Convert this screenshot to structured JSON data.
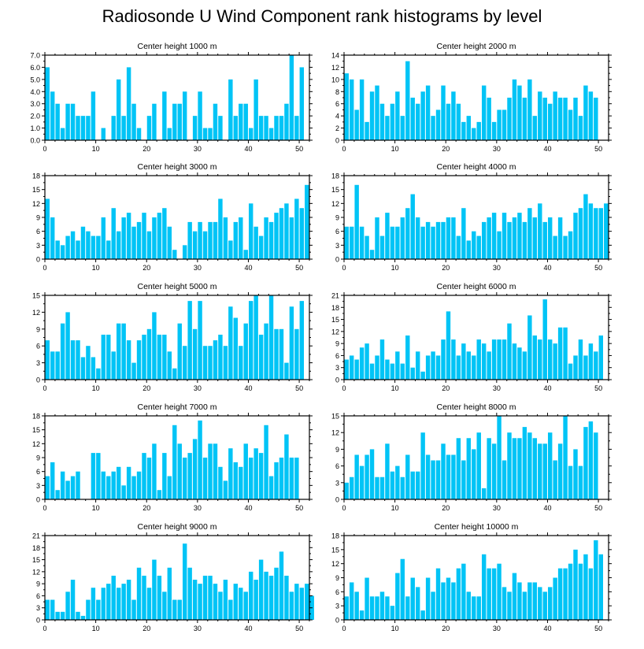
{
  "title": "Radiosonde U Wind Component rank histograms by level",
  "colors": {
    "bar": "#00c4f6",
    "axis": "#000000",
    "background": "#ffffff"
  },
  "chart_data": [
    {
      "type": "bar",
      "title": "Center height 1000 m",
      "ylim": [
        0,
        7
      ],
      "yticks": [
        0,
        1,
        2,
        3,
        4,
        5,
        6,
        7
      ],
      "ytick_labels": [
        "0.0",
        "1.0",
        "2.0",
        "3.0",
        "4.0",
        "5.0",
        "6.0",
        "7.0"
      ],
      "xlim": [
        0,
        52
      ],
      "xticks": [
        0,
        10,
        20,
        30,
        40,
        50
      ],
      "values": [
        6,
        4,
        3,
        1,
        3,
        3,
        2,
        2,
        2,
        4,
        0,
        1,
        0,
        2,
        5,
        2,
        6,
        3,
        1,
        0,
        2,
        3,
        0,
        4,
        1,
        3,
        3,
        4,
        0,
        2,
        4,
        1,
        1,
        3,
        2,
        0,
        5,
        2,
        3,
        3,
        1,
        5,
        2,
        2,
        1,
        2,
        2,
        3,
        7,
        2,
        6
      ]
    },
    {
      "type": "bar",
      "title": "Center height 2000 m",
      "ylim": [
        0,
        14
      ],
      "yticks": [
        0,
        2,
        4,
        6,
        8,
        10,
        12,
        14
      ],
      "ytick_labels": [
        "0",
        "2",
        "4",
        "6",
        "8",
        "10",
        "12",
        "14"
      ],
      "xlim": [
        0,
        52
      ],
      "xticks": [
        0,
        10,
        20,
        30,
        40,
        50
      ],
      "values": [
        11,
        10,
        5,
        10,
        3,
        8,
        9,
        6,
        4,
        6,
        8,
        4,
        13,
        7,
        6,
        8,
        9,
        4,
        5,
        9,
        6,
        8,
        6,
        3,
        4,
        2,
        3,
        9,
        7,
        3,
        5,
        5,
        7,
        10,
        9,
        7,
        10,
        4,
        8,
        7,
        6,
        8,
        7,
        7,
        5,
        7,
        4,
        9,
        8,
        7
      ]
    },
    {
      "type": "bar",
      "title": "Center height 3000 m",
      "ylim": [
        0,
        18
      ],
      "yticks": [
        0,
        3,
        6,
        9,
        12,
        15,
        18
      ],
      "ytick_labels": [
        "0",
        "3",
        "6",
        "9",
        "12",
        "15",
        "18"
      ],
      "xlim": [
        0,
        52
      ],
      "xticks": [
        0,
        10,
        20,
        30,
        40,
        50
      ],
      "values": [
        13,
        9,
        4,
        3,
        5,
        6,
        4,
        7,
        6,
        5,
        5,
        9,
        4,
        11,
        6,
        9,
        10,
        7,
        8,
        10,
        6,
        9,
        10,
        11,
        7,
        2,
        0,
        3,
        8,
        6,
        8,
        6,
        8,
        8,
        13,
        9,
        4,
        8,
        9,
        2,
        12,
        7,
        5,
        9,
        8,
        10,
        11,
        12,
        9,
        13,
        11,
        16
      ]
    },
    {
      "type": "bar",
      "title": "Center height 4000 m",
      "ylim": [
        0,
        18
      ],
      "yticks": [
        0,
        3,
        6,
        9,
        12,
        15,
        18
      ],
      "ytick_labels": [
        "0",
        "3",
        "6",
        "9",
        "12",
        "15",
        "18"
      ],
      "xlim": [
        0,
        52
      ],
      "xticks": [
        0,
        10,
        20,
        30,
        40,
        50
      ],
      "values": [
        7,
        7,
        16,
        7,
        5,
        2,
        9,
        5,
        10,
        7,
        7,
        9,
        11,
        14,
        9,
        7,
        8,
        7,
        8,
        8,
        9,
        9,
        5,
        11,
        4,
        6,
        5,
        8,
        9,
        10,
        6,
        10,
        8,
        9,
        10,
        8,
        11,
        9,
        12,
        8,
        9,
        5,
        9,
        5,
        6,
        10,
        11,
        14,
        12,
        11,
        11,
        12
      ]
    },
    {
      "type": "bar",
      "title": "Center height 5000 m",
      "ylim": [
        0,
        15
      ],
      "yticks": [
        0,
        3,
        6,
        9,
        12,
        15
      ],
      "ytick_labels": [
        "0",
        "3",
        "6",
        "9",
        "12",
        "15"
      ],
      "xlim": [
        0,
        52
      ],
      "xticks": [
        0,
        10,
        20,
        30,
        40,
        50
      ],
      "values": [
        7,
        5,
        5,
        10,
        12,
        7,
        7,
        4,
        6,
        4,
        2,
        8,
        8,
        5,
        10,
        10,
        7,
        3,
        7,
        8,
        9,
        12,
        8,
        8,
        5,
        2,
        10,
        6,
        14,
        9,
        14,
        6,
        6,
        7,
        8,
        6,
        13,
        11,
        6,
        10,
        14,
        15,
        8,
        10,
        15,
        9,
        9,
        3,
        13,
        9,
        14
      ]
    },
    {
      "type": "bar",
      "title": "Center height 6000 m",
      "ylim": [
        0,
        21
      ],
      "yticks": [
        0,
        3,
        6,
        9,
        12,
        15,
        18,
        21
      ],
      "ytick_labels": [
        "0",
        "3",
        "6",
        "9",
        "12",
        "15",
        "18",
        "21"
      ],
      "xlim": [
        0,
        52
      ],
      "xticks": [
        0,
        10,
        20,
        30,
        40,
        50
      ],
      "values": [
        5,
        6,
        5,
        8,
        9,
        4,
        6,
        10,
        5,
        4,
        7,
        4,
        11,
        3,
        7,
        2,
        6,
        7,
        6,
        10,
        17,
        10,
        6,
        9,
        7,
        6,
        10,
        9,
        7,
        10,
        10,
        10,
        14,
        9,
        8,
        7,
        16,
        11,
        10,
        20,
        10,
        9,
        13,
        13,
        4,
        6,
        10,
        6,
        9,
        7,
        11
      ]
    },
    {
      "type": "bar",
      "title": "Center height 7000 m",
      "ylim": [
        0,
        18
      ],
      "yticks": [
        0,
        3,
        6,
        9,
        12,
        15,
        18
      ],
      "ytick_labels": [
        "0",
        "3",
        "6",
        "9",
        "12",
        "15",
        "18"
      ],
      "xlim": [
        0,
        52
      ],
      "xticks": [
        0,
        10,
        20,
        30,
        40,
        50
      ],
      "values": [
        5,
        8,
        2,
        6,
        4,
        5,
        6,
        0,
        0,
        10,
        10,
        6,
        5,
        6,
        7,
        3,
        7,
        5,
        6,
        10,
        9,
        12,
        2,
        10,
        5,
        16,
        12,
        9,
        10,
        13,
        17,
        9,
        12,
        12,
        7,
        4,
        11,
        8,
        7,
        12,
        9,
        11,
        10,
        16,
        5,
        8,
        9,
        14,
        9,
        9
      ]
    },
    {
      "type": "bar",
      "title": "Center height 8000 m",
      "ylim": [
        0,
        15
      ],
      "yticks": [
        0,
        3,
        6,
        9,
        12,
        15
      ],
      "ytick_labels": [
        "0",
        "3",
        "6",
        "9",
        "12",
        "15"
      ],
      "xlim": [
        0,
        52
      ],
      "xticks": [
        0,
        10,
        20,
        30,
        40,
        50
      ],
      "values": [
        3,
        4,
        8,
        6,
        8,
        9,
        4,
        4,
        10,
        5,
        6,
        4,
        8,
        5,
        5,
        12,
        8,
        7,
        7,
        10,
        8,
        8,
        11,
        7,
        11,
        9,
        12,
        2,
        11,
        10,
        15,
        7,
        12,
        11,
        11,
        13,
        12,
        11,
        10,
        10,
        12,
        7,
        10,
        15,
        6,
        9,
        6,
        13,
        14,
        12
      ]
    },
    {
      "type": "bar",
      "title": "Center height 9000 m",
      "ylim": [
        0,
        21
      ],
      "yticks": [
        0,
        3,
        6,
        9,
        12,
        15,
        18,
        21
      ],
      "ytick_labels": [
        "0",
        "3",
        "6",
        "9",
        "12",
        "15",
        "18",
        "21"
      ],
      "xlim": [
        0,
        52
      ],
      "xticks": [
        0,
        10,
        20,
        30,
        40,
        50
      ],
      "values": [
        5,
        5,
        2,
        2,
        7,
        10,
        2,
        1,
        5,
        8,
        5,
        8,
        9,
        11,
        8,
        9,
        10,
        5,
        13,
        11,
        8,
        15,
        11,
        7,
        13,
        5,
        5,
        19,
        13,
        10,
        9,
        11,
        11,
        9,
        7,
        10,
        5,
        9,
        8,
        7,
        12,
        10,
        15,
        12,
        11,
        13,
        17,
        11,
        7,
        9,
        8,
        9,
        6
      ]
    },
    {
      "type": "bar",
      "title": "Center height 10000 m",
      "ylim": [
        0,
        18
      ],
      "yticks": [
        0,
        3,
        6,
        9,
        12,
        15,
        18
      ],
      "ytick_labels": [
        "0",
        "3",
        "6",
        "9",
        "12",
        "15",
        "18"
      ],
      "xlim": [
        0,
        52
      ],
      "xticks": [
        0,
        10,
        20,
        30,
        40,
        50
      ],
      "values": [
        5,
        8,
        6,
        2,
        9,
        5,
        5,
        6,
        5,
        3,
        10,
        13,
        5,
        9,
        7,
        2,
        9,
        6,
        11,
        8,
        9,
        8,
        11,
        12,
        6,
        5,
        5,
        14,
        11,
        11,
        12,
        7,
        6,
        10,
        8,
        6,
        8,
        8,
        7,
        6,
        7,
        9,
        11,
        11,
        12,
        15,
        12,
        14,
        11,
        17,
        14
      ]
    }
  ]
}
